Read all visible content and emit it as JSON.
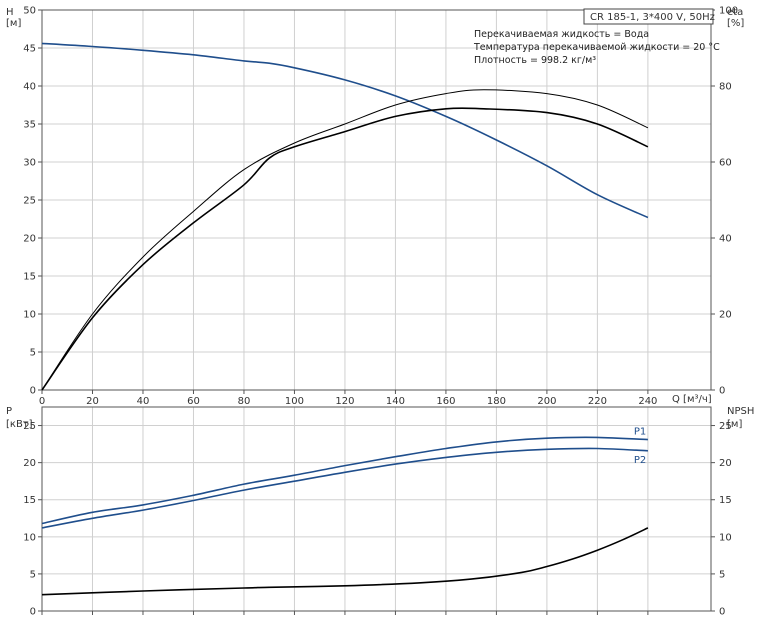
{
  "header": {
    "pump_box": "CR 185-1, 3*400 V, 50Hz",
    "info_lines": [
      "Перекачиваемая жидкость = Вода",
      "Температура перекачиваемой жидкости = 20 °C",
      "Плотность = 998.2 кг/м³"
    ]
  },
  "chart_data": [
    {
      "type": "line",
      "panel": "top",
      "x_axis": {
        "label": "Q [м³/ч]",
        "range": [
          0,
          265
        ],
        "ticks": [
          0,
          20,
          40,
          60,
          80,
          100,
          120,
          140,
          160,
          180,
          200,
          220,
          240
        ]
      },
      "y_left": {
        "label_line1": "H",
        "label_line2": "[м]",
        "range": [
          0,
          50
        ],
        "ticks": [
          0,
          5,
          10,
          15,
          20,
          25,
          30,
          35,
          40,
          45,
          50
        ]
      },
      "y_right": {
        "label_line1": "eta",
        "label_line2": "[%]",
        "range": [
          0,
          100
        ],
        "ticks": [
          0,
          20,
          40,
          60,
          80,
          100
        ]
      },
      "grid": true,
      "series": [
        {
          "id": "H",
          "axis": "left",
          "color": "#1f4e8c",
          "x": [
            0,
            20,
            40,
            60,
            80,
            90,
            100,
            120,
            140,
            160,
            180,
            200,
            220,
            240
          ],
          "y": [
            45.6,
            45.2,
            44.7,
            44.1,
            43.3,
            43.0,
            42.4,
            40.8,
            38.7,
            36.0,
            32.9,
            29.5,
            25.7,
            22.7
          ]
        },
        {
          "id": "eta",
          "axis": "right",
          "color": "#000000",
          "x": [
            0,
            20,
            40,
            60,
            80,
            90,
            100,
            120,
            140,
            160,
            175,
            200,
            220,
            240
          ],
          "y": [
            0,
            19,
            33,
            44,
            54,
            61,
            64,
            68,
            72,
            74,
            74,
            73,
            70,
            64
          ]
        },
        {
          "id": "eta_thin",
          "axis": "right",
          "color": "#000000",
          "x": [
            0,
            20,
            40,
            60,
            80,
            100,
            120,
            140,
            160,
            175,
            200,
            220,
            240
          ],
          "y": [
            0,
            20,
            35,
            47,
            58,
            65,
            70,
            75,
            78,
            79,
            78,
            75,
            69
          ]
        }
      ]
    },
    {
      "type": "line",
      "panel": "bottom",
      "x_axis": {
        "range": [
          0,
          265
        ]
      },
      "y_left": {
        "label_line1": "P",
        "label_line2": "[кВт]",
        "range": [
          0,
          27.5
        ],
        "ticks": [
          0,
          5,
          10,
          15,
          20,
          25
        ]
      },
      "y_right": {
        "label_line1": "NPSH",
        "label_line2": "[м]",
        "range": [
          0,
          27.5
        ],
        "ticks": [
          0,
          5,
          10,
          15,
          20,
          25
        ]
      },
      "grid": true,
      "series": [
        {
          "name": "P1",
          "axis": "left",
          "color": "#1f4e8c",
          "x": [
            0,
            20,
            40,
            60,
            80,
            100,
            120,
            140,
            160,
            180,
            200,
            220,
            240
          ],
          "y": [
            11.8,
            13.3,
            14.3,
            15.6,
            17.1,
            18.3,
            19.6,
            20.8,
            21.9,
            22.8,
            23.3,
            23.4,
            23.1
          ]
        },
        {
          "name": "P2",
          "axis": "left",
          "color": "#1f4e8c",
          "x": [
            0,
            20,
            40,
            60,
            80,
            100,
            120,
            140,
            160,
            180,
            200,
            220,
            240
          ],
          "y": [
            11.2,
            12.5,
            13.6,
            14.9,
            16.3,
            17.5,
            18.7,
            19.8,
            20.7,
            21.4,
            21.8,
            21.9,
            21.6
          ]
        },
        {
          "id": "NPSH",
          "axis": "right",
          "color": "#000000",
          "x": [
            0,
            40,
            80,
            90,
            120,
            150,
            170,
            190,
            200,
            210,
            220,
            230,
            240
          ],
          "y": [
            2.2,
            2.7,
            3.1,
            3.2,
            3.4,
            3.8,
            4.3,
            5.2,
            6.0,
            7.0,
            8.2,
            9.6,
            11.2
          ]
        }
      ]
    }
  ]
}
